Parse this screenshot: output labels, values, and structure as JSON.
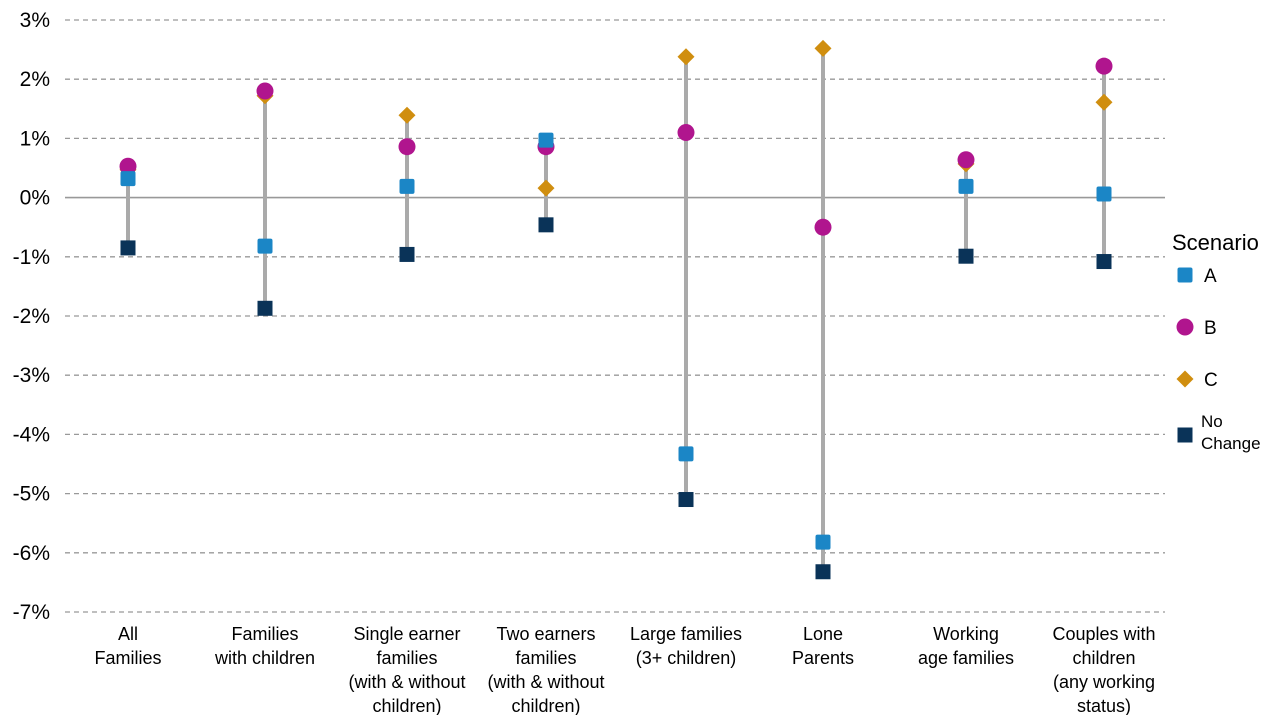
{
  "chart_data": {
    "type": "scatter",
    "title": "",
    "xlabel": "",
    "ylabel": "",
    "ylim": [
      -7,
      3
    ],
    "y_ticks": [
      {
        "value": 3,
        "label": "3%"
      },
      {
        "value": 2,
        "label": "2%"
      },
      {
        "value": 1,
        "label": "1%"
      },
      {
        "value": 0,
        "label": "0%"
      },
      {
        "value": -1,
        "label": "-1%"
      },
      {
        "value": -2,
        "label": "-2%"
      },
      {
        "value": -3,
        "label": "-3%"
      },
      {
        "value": -4,
        "label": "-4%"
      },
      {
        "value": -5,
        "label": "-5%"
      },
      {
        "value": -6,
        "label": "-6%"
      },
      {
        "value": -7,
        "label": "-7%"
      }
    ],
    "grid": true,
    "legend": {
      "title": "Scenario",
      "position": "right"
    },
    "categories": [
      [
        "All",
        "Families"
      ],
      [
        "Families",
        "with children"
      ],
      [
        "Single earner",
        "families",
        "(with & without",
        "children)"
      ],
      [
        "Two earners",
        "families",
        "(with & without",
        "children)"
      ],
      [
        "Large families",
        "(3+ children)"
      ],
      [
        "Lone",
        "Parents"
      ],
      [
        "Working",
        "age families"
      ],
      [
        "Couples with",
        "children",
        "(any working",
        "status)"
      ]
    ],
    "series": [
      {
        "name": "A",
        "label_lines": [
          "A"
        ],
        "marker": "square-small",
        "color": "#1B86C6",
        "values": [
          0.32,
          -0.82,
          0.19,
          0.97,
          -4.33,
          -5.82,
          0.19,
          0.06
        ]
      },
      {
        "name": "B",
        "label_lines": [
          "B"
        ],
        "marker": "circle",
        "color": "#B0158E",
        "values": [
          0.53,
          1.8,
          0.86,
          0.86,
          1.1,
          -0.5,
          0.64,
          2.22
        ]
      },
      {
        "name": "C",
        "label_lines": [
          "C"
        ],
        "marker": "diamond",
        "color": "#D08E0F",
        "values": [
          0.47,
          1.72,
          1.39,
          0.16,
          2.38,
          2.52,
          0.57,
          1.61
        ]
      },
      {
        "name": "No Change",
        "label_lines": [
          "No",
          "Change"
        ],
        "marker": "square",
        "color": "#0A3358",
        "values": [
          -0.85,
          -1.87,
          -0.96,
          -0.46,
          -5.1,
          -6.32,
          -0.99,
          -1.08
        ]
      }
    ],
    "range_line_color": "#AAAAAA",
    "grid_color": "#999999",
    "zero_line_color": "#999999"
  }
}
